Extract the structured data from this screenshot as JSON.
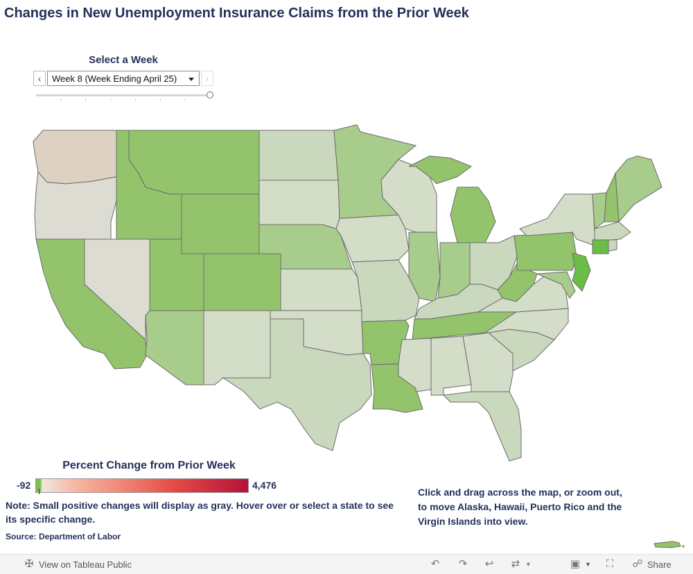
{
  "title": "Changes in New Unemployment Insurance Claims from the Prior Week",
  "week_filter": {
    "label": "Select a Week",
    "selected": "Week 8 (Week Ending April 25)",
    "prev_icon": "chevron-left-icon",
    "next_icon": "chevron-right-icon"
  },
  "legend": {
    "title": "Percent Change from Prior Week",
    "min": "-92",
    "max": "4,476",
    "colors": {
      "negative": "#7fbf4f",
      "neutral": "#e9e3dc",
      "positive_low": "#f6b8a4",
      "positive_high": "#b5113a"
    }
  },
  "note": "Note: Small positive changes will display as gray. Hover over or select a state to see its specific change.",
  "source": "Source: Department of Labor",
  "map_hint": "Click and drag across the map, or zoom out, to move Alaska, Hawaii, Puerto Rico and the Virgin Islands into view.",
  "map_colors": {
    "strong_green": "#6bbd45",
    "green": "#93c46c",
    "mid_green": "#a8cc8b",
    "light_green": "#bcd2ab",
    "pale_green": "#cad9bd",
    "gray_green": "#d3ddc8",
    "neutral": "#dcdcd2",
    "tan": "#ddd2c1",
    "border": "#6b6b6b"
  },
  "toolbar": {
    "view_on": "View on Tableau Public",
    "share": "Share",
    "icons": [
      "tableau-logo-icon",
      "undo-icon",
      "redo-icon",
      "revert-icon",
      "refresh-icon",
      "download-icon",
      "fullscreen-icon",
      "share-icon"
    ]
  }
}
